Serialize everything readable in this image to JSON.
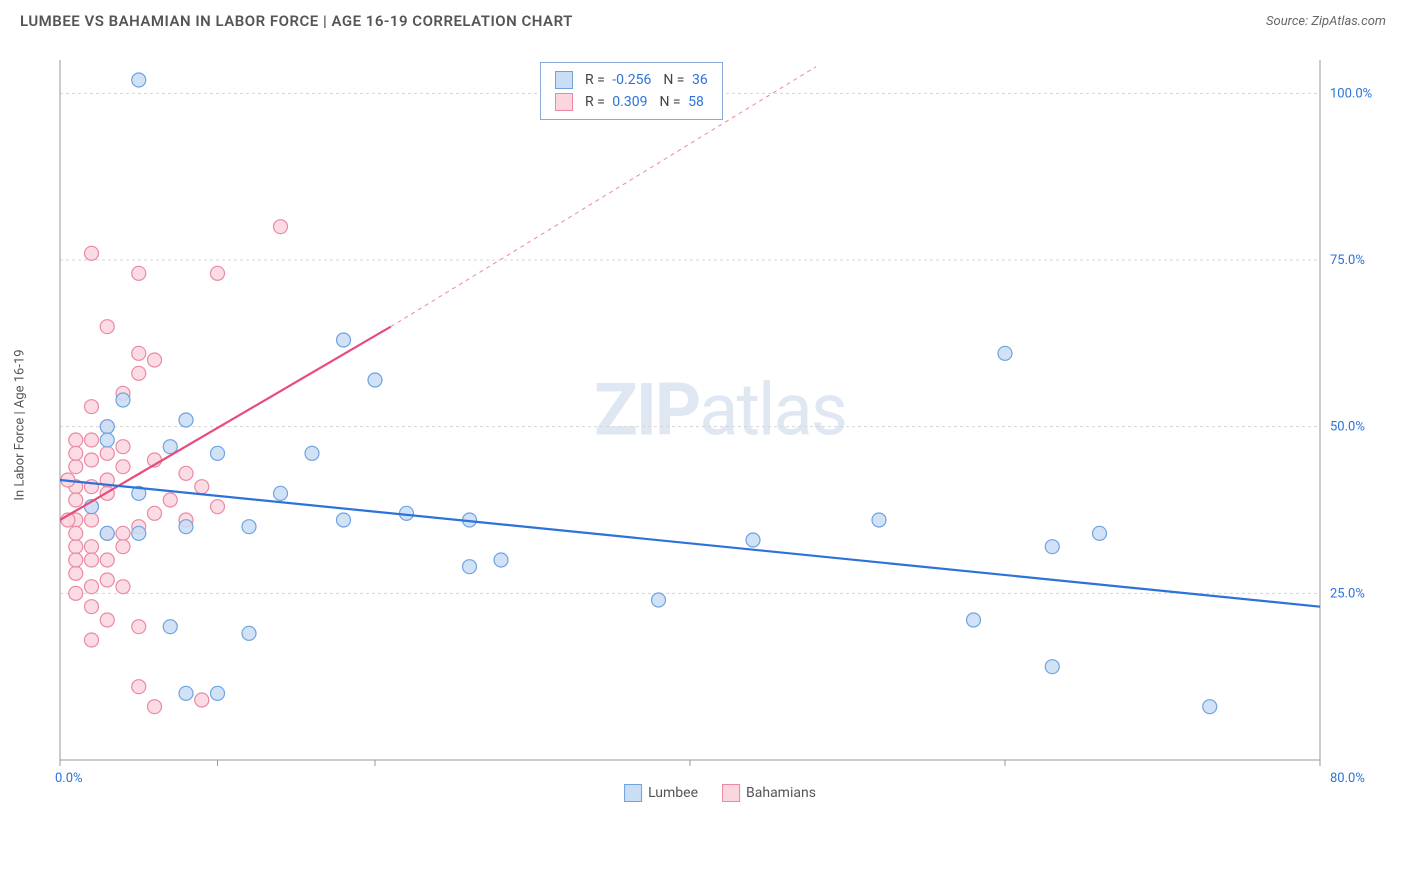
{
  "header": {
    "title": "LUMBEE VS BAHAMIAN IN LABOR FORCE | AGE 16-19 CORRELATION CHART",
    "source": "Source: ZipAtlas.com"
  },
  "chart": {
    "type": "scatter",
    "ylabel": "In Labor Force | Age 16-19",
    "watermark_a": "ZIP",
    "watermark_b": "atlas",
    "xlim": [
      0,
      80
    ],
    "ylim": [
      0,
      105
    ],
    "y_ticks": [
      25,
      50,
      75,
      100
    ],
    "y_tick_labels": [
      "25.0%",
      "50.0%",
      "75.0%",
      "100.0%"
    ],
    "x_ticks": [
      0,
      10,
      20,
      40,
      60,
      80
    ],
    "x_min_label": "0.0%",
    "x_max_label": "80.0%",
    "grid_color": "#d5d5d5",
    "axis_color": "#999999",
    "background_color": "#ffffff",
    "marker_radius": 7,
    "marker_stroke_width": 1.2,
    "line_width": 2.2,
    "series": {
      "lumbee": {
        "label": "Lumbee",
        "fill": "#c9ddf4",
        "stroke": "#6fa3e0",
        "line_color": "#2c72d9",
        "R": "-0.256",
        "N": "36",
        "trend": {
          "x1": 0,
          "y1": 42,
          "x2": 80,
          "y2": 23
        },
        "points": [
          [
            5,
            102
          ],
          [
            37,
            100
          ],
          [
            3,
            50
          ],
          [
            7,
            47
          ],
          [
            10,
            46
          ],
          [
            8,
            51
          ],
          [
            18,
            63
          ],
          [
            20,
            57
          ],
          [
            5,
            40
          ],
          [
            8,
            35
          ],
          [
            12,
            35
          ],
          [
            14,
            40
          ],
          [
            18,
            36
          ],
          [
            22,
            37
          ],
          [
            26,
            29
          ],
          [
            28,
            30
          ],
          [
            5,
            34
          ],
          [
            7,
            20
          ],
          [
            12,
            19
          ],
          [
            10,
            10
          ],
          [
            63,
            14
          ],
          [
            44,
            33
          ],
          [
            52,
            36
          ],
          [
            58,
            21
          ],
          [
            63,
            32
          ],
          [
            66,
            34
          ],
          [
            73,
            8
          ],
          [
            38,
            24
          ],
          [
            16,
            46
          ],
          [
            60,
            61
          ],
          [
            8,
            10
          ],
          [
            4,
            54
          ],
          [
            3,
            34
          ],
          [
            2,
            38
          ],
          [
            3,
            48
          ],
          [
            26,
            36
          ]
        ]
      },
      "bahamians": {
        "label": "Bahamians",
        "fill": "#fcd6df",
        "stroke": "#ea89a3",
        "line_color": "#e94b7a",
        "R": "0.309",
        "N": "58",
        "trend": {
          "x1": 0,
          "y1": 36,
          "x2": 21,
          "y2": 65
        },
        "dashed_extension": {
          "x1": 21,
          "y1": 65,
          "x2": 48,
          "y2": 104
        },
        "points": [
          [
            2,
            76
          ],
          [
            5,
            73
          ],
          [
            10,
            73
          ],
          [
            14,
            80
          ],
          [
            3,
            65
          ],
          [
            5,
            61
          ],
          [
            5,
            58
          ],
          [
            6,
            60
          ],
          [
            4,
            55
          ],
          [
            2,
            53
          ],
          [
            3,
            50
          ],
          [
            1,
            48
          ],
          [
            4,
            47
          ],
          [
            2,
            45
          ],
          [
            6,
            45
          ],
          [
            2,
            38
          ],
          [
            1,
            41
          ],
          [
            3,
            40
          ],
          [
            1,
            36
          ],
          [
            2,
            36
          ],
          [
            3,
            34
          ],
          [
            4,
            34
          ],
          [
            5,
            35
          ],
          [
            1,
            32
          ],
          [
            2,
            32
          ],
          [
            4,
            32
          ],
          [
            2,
            30
          ],
          [
            3,
            30
          ],
          [
            1,
            28
          ],
          [
            3,
            27
          ],
          [
            4,
            26
          ],
          [
            1,
            25
          ],
          [
            2,
            23
          ],
          [
            3,
            21
          ],
          [
            5,
            20
          ],
          [
            2,
            18
          ],
          [
            5,
            11
          ],
          [
            6,
            8
          ],
          [
            9,
            9
          ],
          [
            8,
            36
          ],
          [
            7,
            39
          ],
          [
            9,
            41
          ],
          [
            6,
            37
          ],
          [
            8,
            43
          ],
          [
            10,
            38
          ],
          [
            3,
            42
          ],
          [
            1,
            44
          ],
          [
            4,
            44
          ],
          [
            1,
            39
          ],
          [
            2,
            41
          ],
          [
            1,
            34
          ],
          [
            0.5,
            36
          ],
          [
            0.5,
            42
          ],
          [
            1,
            46
          ],
          [
            2,
            48
          ],
          [
            3,
            46
          ],
          [
            1,
            30
          ],
          [
            2,
            26
          ]
        ]
      }
    },
    "legend_labels": {
      "R": "R =",
      "N": "N ="
    }
  }
}
